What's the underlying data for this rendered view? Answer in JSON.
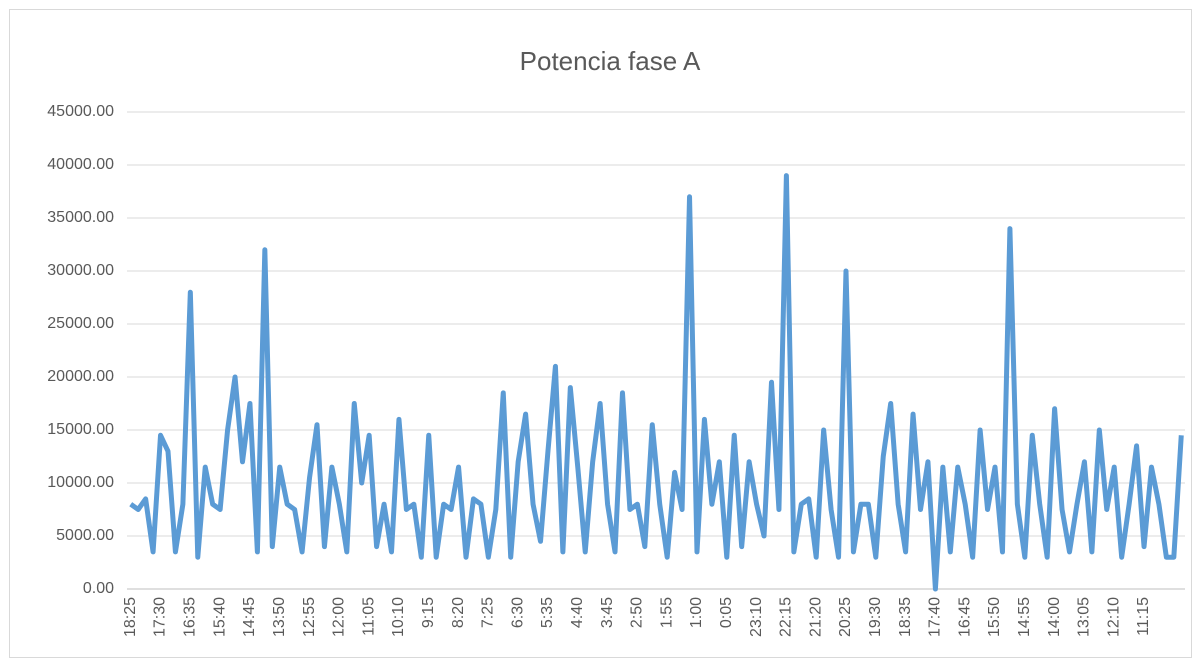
{
  "chart_data": {
    "type": "line",
    "title": "Potencia fase A",
    "categories": [
      "18:25",
      null,
      null,
      null,
      "17:30",
      null,
      null,
      null,
      "16:35",
      null,
      null,
      null,
      "15:40",
      null,
      null,
      null,
      "14:45",
      null,
      null,
      null,
      "13:50",
      null,
      null,
      null,
      "12:55",
      null,
      null,
      null,
      "12:00",
      null,
      null,
      null,
      "11:05",
      null,
      null,
      null,
      "10:10",
      null,
      null,
      null,
      "9:15",
      null,
      null,
      null,
      "8:20",
      null,
      null,
      null,
      "7:25",
      null,
      null,
      null,
      "6:30",
      null,
      null,
      null,
      "5:35",
      null,
      null,
      null,
      "4:40",
      null,
      null,
      null,
      "3:45",
      null,
      null,
      null,
      "2:50",
      null,
      null,
      null,
      "1:55",
      null,
      null,
      null,
      "1:00",
      null,
      null,
      null,
      "0:05",
      null,
      null,
      null,
      "23:10",
      null,
      null,
      null,
      "22:15",
      null,
      null,
      null,
      "21:20",
      null,
      null,
      null,
      "20:25",
      null,
      null,
      null,
      "19:30",
      null,
      null,
      null,
      "18:35",
      null,
      null,
      null,
      "17:40",
      null,
      null,
      null,
      "16:45",
      null,
      null,
      null,
      "15:50",
      null,
      null,
      null,
      "14:55",
      null,
      null,
      null,
      "14:00",
      null,
      null,
      null,
      "13:05",
      null,
      null,
      null,
      "12:10",
      null,
      null,
      null,
      "11:15",
      null,
      null,
      null,
      null,
      null
    ],
    "series": [
      {
        "name": "Potencia fase A",
        "color": "#5b9bd5",
        "values": [
          8000,
          7500,
          8500,
          3500,
          14500,
          13000,
          3500,
          8000,
          28000,
          3000,
          11500,
          8000,
          7500,
          15000,
          20000,
          12000,
          17500,
          3500,
          32000,
          4000,
          11500,
          8000,
          7500,
          3500,
          10500,
          15500,
          4000,
          11500,
          8000,
          3500,
          17500,
          10000,
          14500,
          4000,
          8000,
          3500,
          16000,
          7500,
          8000,
          3000,
          14500,
          3000,
          8000,
          7500,
          11500,
          3000,
          8500,
          8000,
          3000,
          7500,
          18500,
          3000,
          12000,
          16500,
          8000,
          4500,
          13000,
          21000,
          3500,
          19000,
          11500,
          3500,
          12000,
          17500,
          8000,
          3500,
          18500,
          7500,
          8000,
          4000,
          15500,
          8000,
          3000,
          11000,
          7500,
          37000,
          3500,
          16000,
          8000,
          12000,
          3000,
          14500,
          4000,
          12000,
          8000,
          5000,
          19500,
          7500,
          39000,
          3500,
          8000,
          8500,
          3000,
          15000,
          7500,
          3000,
          30000,
          3500,
          8000,
          8000,
          3000,
          12500,
          17500,
          8000,
          3500,
          16500,
          7500,
          12000,
          0,
          11500,
          3500,
          11500,
          8000,
          3000,
          15000,
          7500,
          11500,
          3500,
          34000,
          8000,
          3000,
          14500,
          8000,
          3000,
          17000,
          7500,
          3500,
          8000,
          12000,
          3500,
          15000,
          7500,
          11500,
          3000,
          8000,
          13500,
          4000,
          11500,
          8000,
          3000,
          3000,
          14500
        ]
      }
    ],
    "ylim": [
      0,
      45000
    ],
    "yticks": [
      {
        "value": 0,
        "label": "0.00"
      },
      {
        "value": 5000,
        "label": "5000.00"
      },
      {
        "value": 10000,
        "label": "10000.00"
      },
      {
        "value": 15000,
        "label": "15000.00"
      },
      {
        "value": 20000,
        "label": "20000.00"
      },
      {
        "value": 25000,
        "label": "25000.00"
      },
      {
        "value": 30000,
        "label": "30000.00"
      },
      {
        "value": 35000,
        "label": "35000.00"
      },
      {
        "value": 40000,
        "label": "40000.00"
      },
      {
        "value": 45000,
        "label": "45000.00"
      }
    ],
    "grid": true
  }
}
